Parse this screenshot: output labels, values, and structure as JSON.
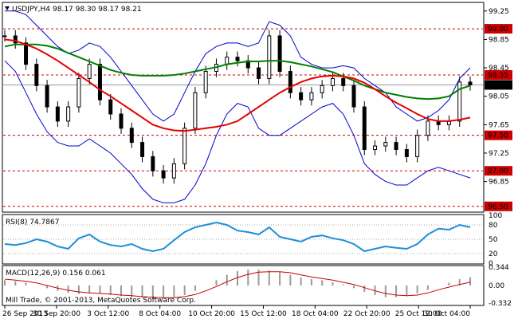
{
  "chart_data": {
    "type": "line",
    "symbol_header": "USDJPY,H4",
    "ohlc": "98.17 98.30 98.17 98.21",
    "price_axis": {
      "ticks": [
        "99.25",
        "98.85",
        "98.45",
        "98.05",
        "97.65",
        "97.25",
        "96.85"
      ],
      "range": [
        96.43,
        99.36
      ]
    },
    "levels": [
      {
        "label": "99.00",
        "value": 99.0
      },
      {
        "label": "98.35",
        "value": 98.35
      },
      {
        "label": "97.50",
        "value": 97.5
      },
      {
        "label": "97.00",
        "value": 97.0
      },
      {
        "label": "96.50",
        "value": 96.5
      }
    ],
    "current_price": {
      "label": "98.21",
      "value": 98.21
    },
    "time_axis": [
      "26 Sep 2013",
      "30 Sep 20:00",
      "3 Oct 12:00",
      "8 Oct 04:00",
      "10 Oct 20:00",
      "15 Oct 12:00",
      "18 Oct 04:00",
      "22 Oct 20:00",
      "25 Oct 12:00",
      "30 Oct 04:00"
    ],
    "price_series": {
      "close": [
        98.9,
        98.8,
        98.5,
        98.2,
        97.9,
        97.7,
        97.9,
        98.3,
        98.5,
        98.0,
        97.8,
        97.6,
        97.4,
        97.2,
        97.0,
        96.9,
        97.1,
        97.6,
        98.1,
        98.4,
        98.5,
        98.6,
        98.55,
        98.45,
        98.3,
        98.9,
        98.4,
        98.1,
        98.0,
        98.1,
        98.2,
        98.3,
        98.2,
        97.9,
        97.3,
        97.35,
        97.4,
        97.3,
        97.2,
        97.5,
        97.7,
        97.65,
        97.7,
        98.25,
        98.21
      ],
      "ma_green": [
        98.75,
        98.78,
        98.78,
        98.78,
        98.76,
        98.72,
        98.66,
        98.6,
        98.54,
        98.48,
        98.42,
        98.38,
        98.35,
        98.34,
        98.34,
        98.34,
        98.35,
        98.37,
        98.4,
        98.43,
        98.46,
        98.5,
        98.52,
        98.54,
        98.54,
        98.55,
        98.55,
        98.53,
        98.5,
        98.47,
        98.43,
        98.39,
        98.33,
        98.27,
        98.2,
        98.15,
        98.1,
        98.07,
        98.04,
        98.02,
        98.01,
        98.02,
        98.05,
        98.15,
        98.2
      ],
      "ma_red": [
        98.85,
        98.83,
        98.78,
        98.72,
        98.64,
        98.55,
        98.45,
        98.35,
        98.25,
        98.14,
        98.05,
        97.95,
        97.85,
        97.75,
        97.65,
        97.6,
        97.57,
        97.56,
        97.58,
        97.6,
        97.62,
        97.65,
        97.7,
        97.8,
        97.9,
        98.0,
        98.1,
        98.18,
        98.25,
        98.3,
        98.33,
        98.34,
        98.33,
        98.3,
        98.24,
        98.15,
        98.05,
        97.96,
        97.88,
        97.8,
        97.73,
        97.7,
        97.7,
        97.72,
        97.75
      ],
      "bb_upper": [
        99.25,
        99.25,
        99.2,
        99.05,
        98.9,
        98.75,
        98.65,
        98.7,
        98.8,
        98.75,
        98.6,
        98.4,
        98.2,
        98.0,
        97.8,
        97.7,
        97.8,
        98.1,
        98.4,
        98.65,
        98.75,
        98.8,
        98.8,
        98.75,
        98.8,
        99.1,
        99.05,
        98.9,
        98.6,
        98.5,
        98.45,
        98.45,
        98.48,
        98.45,
        98.3,
        98.2,
        98.1,
        97.9,
        97.8,
        97.7,
        97.75,
        97.85,
        98.0,
        98.3,
        98.45
      ],
      "bb_lower": [
        98.55,
        98.4,
        98.1,
        97.8,
        97.55,
        97.4,
        97.35,
        97.35,
        97.45,
        97.35,
        97.25,
        97.1,
        96.95,
        96.75,
        96.6,
        96.55,
        96.55,
        96.6,
        96.8,
        97.1,
        97.5,
        97.8,
        97.95,
        97.9,
        97.6,
        97.5,
        97.5,
        97.6,
        97.7,
        97.8,
        97.9,
        97.95,
        97.8,
        97.5,
        97.1,
        96.95,
        96.85,
        96.8,
        96.8,
        96.9,
        97.0,
        97.05,
        97.0,
        96.95,
        96.9
      ]
    },
    "rsi": {
      "label": "RSI(8) 74.7867",
      "ticks": [
        "100",
        "80",
        "50",
        "20",
        "0"
      ],
      "range": [
        0,
        100
      ],
      "values": [
        40,
        38,
        42,
        50,
        45,
        35,
        30,
        52,
        60,
        45,
        38,
        35,
        40,
        30,
        25,
        30,
        48,
        65,
        75,
        80,
        85,
        80,
        68,
        65,
        60,
        75,
        55,
        50,
        45,
        55,
        58,
        52,
        48,
        40,
        25,
        30,
        35,
        32,
        30,
        40,
        60,
        72,
        70,
        80,
        75
      ]
    },
    "macd": {
      "label": "MACD(12,26,9) 0.156 0.061",
      "ticks": [
        "0.344",
        "0.00",
        "-0.332"
      ],
      "range": [
        -0.36,
        0.36
      ],
      "hist": [
        0.1,
        0.08,
        0.05,
        0.0,
        -0.05,
        -0.1,
        -0.14,
        -0.16,
        -0.15,
        -0.15,
        -0.18,
        -0.2,
        -0.22,
        -0.23,
        -0.24,
        -0.24,
        -0.22,
        -0.18,
        -0.1,
        0.0,
        0.1,
        0.2,
        0.27,
        0.3,
        0.3,
        0.28,
        0.25,
        0.2,
        0.15,
        0.12,
        0.1,
        0.06,
        0.02,
        -0.05,
        -0.12,
        -0.18,
        -0.22,
        -0.22,
        -0.2,
        -0.15,
        -0.08,
        0.0,
        0.05,
        0.12,
        0.156
      ],
      "signal": [
        0.12,
        0.1,
        0.08,
        0.05,
        0.0,
        -0.05,
        -0.09,
        -0.12,
        -0.14,
        -0.15,
        -0.16,
        -0.18,
        -0.19,
        -0.21,
        -0.22,
        -0.23,
        -0.23,
        -0.21,
        -0.17,
        -0.1,
        -0.02,
        0.07,
        0.15,
        0.21,
        0.25,
        0.26,
        0.26,
        0.24,
        0.2,
        0.16,
        0.13,
        0.1,
        0.06,
        0.02,
        -0.04,
        -0.1,
        -0.15,
        -0.18,
        -0.19,
        -0.18,
        -0.14,
        -0.08,
        -0.03,
        0.02,
        0.061
      ]
    },
    "footer_text": "Mill Trade, © 2001-2013, MetaQuotes Software Corp."
  },
  "colors": {
    "ma_green": "#008000",
    "ma_red": "#e60000",
    "bands": "#0000cc",
    "candles": "#000000",
    "level_line": "#cc0000",
    "level_label_bg": "#cc0000",
    "price_label_bg": "#000000",
    "rsi_line": "#1e8fd6",
    "macd_hist": "#999999",
    "macd_signal": "#cc0000"
  }
}
